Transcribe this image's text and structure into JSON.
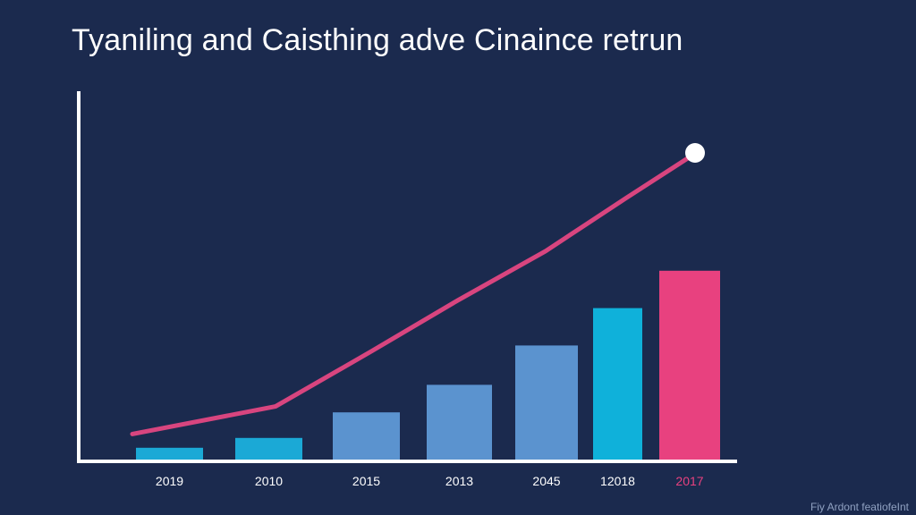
{
  "chart_data": {
    "type": "bar",
    "title": "Tyaniling and Caisthing adve Cinaince retrun",
    "xlabel": "",
    "ylabel": "",
    "categories": [
      "2019",
      "2010",
      "2015",
      "2013",
      "2045",
      "12018",
      "2017"
    ],
    "values": [
      6,
      11,
      24,
      38,
      58,
      77,
      96
    ],
    "bar_colors": [
      "#1ba9d6",
      "#1ba9d6",
      "#5b93cf",
      "#5b93cf",
      "#5b93cf",
      "#0fb1da",
      "#e8417f"
    ],
    "label_colors": [
      "#ffffff",
      "#ffffff",
      "#ffffff",
      "#ffffff",
      "#ffffff",
      "#ffffff",
      "#e8417f"
    ],
    "series": [
      {
        "values": [
          13,
          27,
          55,
          81,
          106,
          133,
          155
        ],
        "color": "#d8457f",
        "end_marker_color": "#ffffff"
      }
    ],
    "ylim": [
      0,
      180
    ],
    "grid": false,
    "axis_color": "#ffffff",
    "background": "#1b2a4e"
  },
  "watermark": "Fiy Ardont featiofeInt"
}
